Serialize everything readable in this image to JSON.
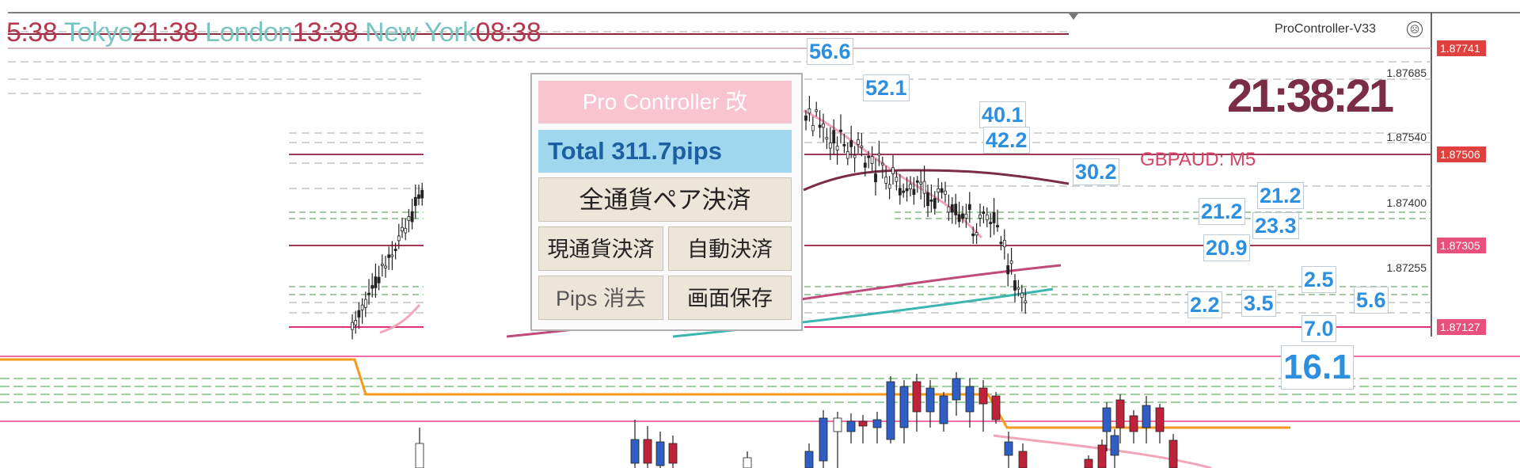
{
  "session_bar": {
    "frag": "5:38",
    "tokyo_label": "Tokyo",
    "tokyo_time": "21:38",
    "london_label": "London",
    "london_time": "13:38",
    "newyork_label": "New York",
    "newyork_time": "08:38"
  },
  "indicator": {
    "name": "ProController-V33",
    "close_glyph": "☹"
  },
  "clock": "21:38:21",
  "symbol": "GBPAUD: M5",
  "price_axis": {
    "labels": [
      "1.87685",
      "1.87540",
      "1.87400",
      "1.87255"
    ],
    "boxes": [
      {
        "text": "1.87741",
        "color": "#e0413f"
      },
      {
        "text": "1.87506",
        "color": "#e0413f"
      },
      {
        "text": "1.87305",
        "color": "#e8507c"
      },
      {
        "text": "1.87127",
        "color": "#e8507c"
      }
    ]
  },
  "pip_labels": [
    "56.6",
    "52.1",
    "40.1",
    "42.2",
    "30.2",
    "21.2",
    "21.2",
    "23.3",
    "20.9",
    "2.5",
    "2.2",
    "3.5",
    "5.6",
    "7.0",
    "16.1"
  ],
  "panel": {
    "title": "Pro Controller 改",
    "total": "Total    311.7pips",
    "close_all": "全通貨ペア決済",
    "close_current": "現通貨決済",
    "auto_close": "自動決済",
    "clear_pips": "Pips 消去",
    "save_screen": "画面保存"
  },
  "colors": {
    "red_session": "#b5384f",
    "teal_session": "#7bc4bf",
    "pip_blue": "#2d8fe0",
    "bull": "#2f5fc4",
    "bear": "#c0223a",
    "ma_pink": "#f2a5b8",
    "ma_maroon": "#7a2d44",
    "ma_teal": "#3bb5b0",
    "orange": "#f59a1c"
  }
}
